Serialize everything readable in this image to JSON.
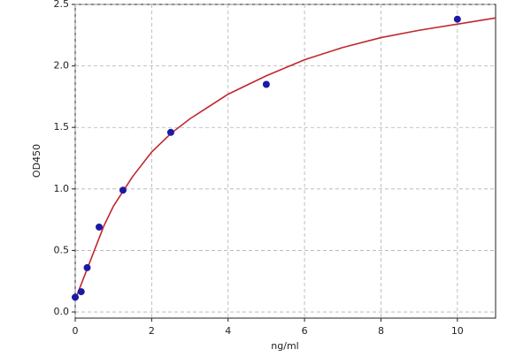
{
  "chart_data": {
    "type": "scatter",
    "xlabel": "ng/ml",
    "ylabel": "OD450",
    "xlim": [
      0,
      11
    ],
    "xticks": [
      0,
      2,
      4,
      6,
      8,
      10
    ],
    "ylim": [
      -0.05,
      2.5
    ],
    "yticks": [
      {
        "value": 0,
        "label": "0.0"
      },
      0.5,
      {
        "value": 1,
        "label": "1.0"
      },
      1.5,
      {
        "value": 2,
        "label": "2.0"
      },
      2.5
    ],
    "grid": true,
    "series": [
      {
        "mode": "line",
        "color": "#c0282d",
        "x": [
          0,
          0.25,
          0.5,
          0.75,
          1,
          1.5,
          2,
          2.5,
          3,
          4,
          5,
          6,
          7,
          8,
          9,
          10,
          11
        ],
        "values": [
          0.1,
          0.3,
          0.5,
          0.7,
          0.86,
          1.1,
          1.3,
          1.45,
          1.57,
          1.77,
          1.92,
          2.05,
          2.15,
          2.23,
          2.29,
          2.34,
          2.39
        ]
      },
      {
        "mode": "markers",
        "color": "#1a1aa6",
        "x": [
          0,
          0.156,
          0.3125,
          0.625,
          1.25,
          2.5,
          5,
          10
        ],
        "values": [
          0.12,
          0.165,
          0.36,
          0.69,
          0.99,
          1.46,
          1.85,
          2.38
        ]
      }
    ]
  }
}
